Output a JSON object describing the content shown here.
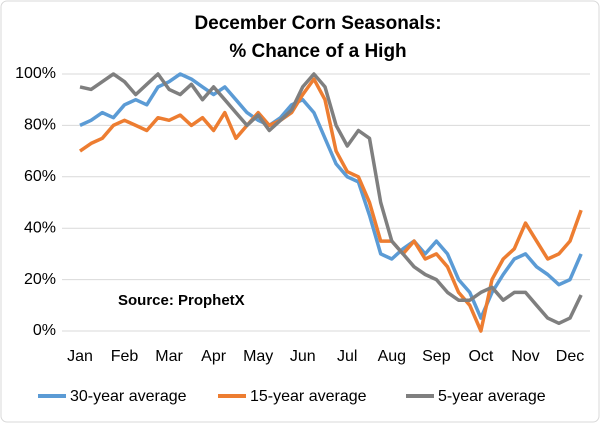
{
  "chart_data": {
    "type": "line",
    "title": "December Corn Seasonals:",
    "subtitle": "% Chance of a High",
    "annotation": "Source: ProphetX",
    "categories": [
      "Jan",
      null,
      null,
      null,
      "Feb",
      null,
      null,
      null,
      "Mar",
      null,
      null,
      null,
      "Apr",
      null,
      null,
      null,
      "May",
      null,
      null,
      null,
      "Jun",
      null,
      null,
      null,
      "Jul",
      null,
      null,
      null,
      "Aug",
      null,
      null,
      null,
      "Sep",
      null,
      null,
      null,
      "Oct",
      null,
      null,
      null,
      "Nov",
      null,
      null,
      null,
      "Dec",
      null
    ],
    "series": [
      {
        "name": "30-year average",
        "color": "#5b9bd5",
        "values": [
          80,
          82,
          85,
          83,
          88,
          90,
          88,
          95,
          97,
          100,
          98,
          95,
          92,
          95,
          90,
          85,
          82,
          80,
          83,
          88,
          90,
          85,
          75,
          65,
          60,
          58,
          45,
          30,
          28,
          32,
          35,
          30,
          35,
          30,
          20,
          15,
          5,
          15,
          22,
          28,
          30,
          25,
          22,
          18,
          20,
          30
        ]
      },
      {
        "name": "15-year average",
        "color": "#ed7d31",
        "values": [
          70,
          73,
          75,
          80,
          82,
          80,
          78,
          83,
          82,
          84,
          80,
          83,
          78,
          85,
          75,
          80,
          85,
          80,
          82,
          85,
          92,
          98,
          90,
          70,
          62,
          60,
          50,
          35,
          35,
          30,
          35,
          28,
          30,
          25,
          15,
          10,
          0,
          20,
          28,
          32,
          42,
          35,
          28,
          30,
          35,
          47
        ]
      },
      {
        "name": "5-year average",
        "color": "#7f7f7f",
        "values": [
          95,
          94,
          97,
          100,
          97,
          92,
          96,
          100,
          94,
          92,
          96,
          90,
          95,
          90,
          85,
          80,
          84,
          78,
          82,
          86,
          95,
          100,
          95,
          80,
          72,
          78,
          75,
          50,
          35,
          30,
          25,
          22,
          20,
          15,
          12,
          12,
          15,
          17,
          12,
          15,
          15,
          10,
          5,
          3,
          5,
          14
        ]
      }
    ],
    "ylim": [
      0,
      100
    ],
    "yticks": [
      {
        "value": 0,
        "label": "0%"
      },
      {
        "value": 20,
        "label": "20%"
      },
      {
        "value": 40,
        "label": "40%"
      },
      {
        "value": 60,
        "label": "60%"
      },
      {
        "value": 80,
        "label": "80%"
      },
      {
        "value": 100,
        "label": "100%"
      }
    ],
    "grid": true
  }
}
